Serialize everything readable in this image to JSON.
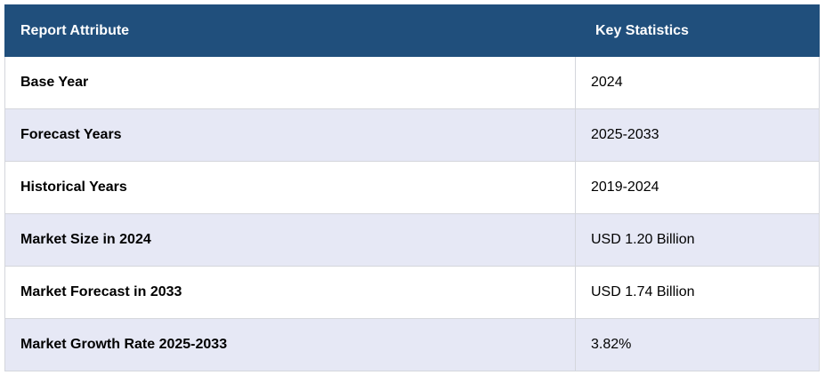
{
  "table": {
    "header": [
      "Report Attribute",
      "Key Statistics"
    ],
    "rows": [
      [
        "Base Year",
        "2024"
      ],
      [
        "Forecast Years",
        "2025-2033"
      ],
      [
        "Historical Years",
        "2019-2024"
      ],
      [
        "Market Size in 2024",
        "USD 1.20 Billion"
      ],
      [
        "Market Forecast in 2033",
        "USD 1.74 Billion"
      ],
      [
        "Market Growth Rate 2025-2033",
        "3.82%"
      ]
    ]
  }
}
